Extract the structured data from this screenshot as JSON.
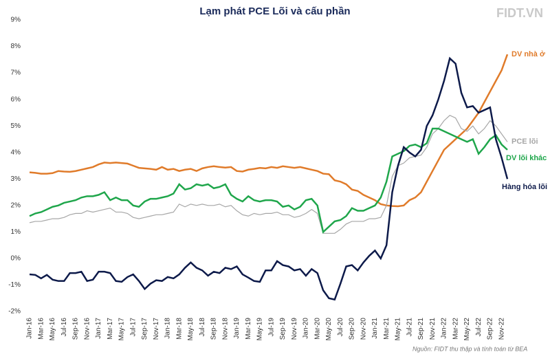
{
  "chart_data": {
    "type": "line",
    "title": "Lạm phát PCE Lõi và cấu phần",
    "logo": "FIDT.VN",
    "source": "Nguồn: FIDT thu thập và tính toán từ BEA",
    "categories": [
      "Jan-16",
      null,
      "Mar-16",
      null,
      "May-16",
      null,
      "Jul-16",
      null,
      "Sep-16",
      null,
      "Nov-16",
      null,
      "Jan-17",
      null,
      "Mar-17",
      null,
      "May-17",
      null,
      "Jul-17",
      null,
      "Sep-17",
      null,
      "Nov-17",
      null,
      "Jan-18",
      null,
      "Mar-18",
      null,
      "May-18",
      null,
      "Jul-18",
      null,
      "Sep-18",
      null,
      "Nov-18",
      null,
      "Jan-19",
      null,
      "Mar-19",
      null,
      "May-19",
      null,
      "Jul-19",
      null,
      "Sep-19",
      null,
      "Nov-19",
      null,
      "Jan-20",
      null,
      "Mar-20",
      null,
      "May-20",
      null,
      "Jul-20",
      null,
      "Sep-20",
      null,
      "Nov-20",
      null,
      "Jan-21",
      null,
      "Mar-21",
      null,
      "May-21",
      null,
      "Jul-21",
      null,
      "Sep-21",
      null,
      "Nov-21",
      null,
      "Jan-22",
      null,
      "Mar-22",
      null,
      "May-22",
      null,
      "Jul-22",
      null,
      "Sep-22",
      null,
      "Nov-22",
      null
    ],
    "ylim": [
      -2,
      9
    ],
    "yticks": [
      {
        "value": -2,
        "label": "-2%"
      },
      {
        "value": -1,
        "label": "-1%"
      },
      {
        "value": 0,
        "label": "0%"
      },
      {
        "value": 1,
        "label": "1%"
      },
      {
        "value": 2,
        "label": "2%"
      },
      {
        "value": 3,
        "label": "3%"
      },
      {
        "value": 4,
        "label": "4%"
      },
      {
        "value": 5,
        "label": "5%"
      },
      {
        "value": 6,
        "label": "6%"
      },
      {
        "value": 7,
        "label": "7%"
      },
      {
        "value": 8,
        "label": "8%"
      },
      {
        "value": 9,
        "label": "9%"
      }
    ],
    "grid": false,
    "series": [
      {
        "name": "DV nhà ở",
        "color": "#e07b2a",
        "values": [
          3.25,
          3.23,
          3.2,
          3.2,
          3.22,
          3.3,
          3.28,
          3.27,
          3.3,
          3.35,
          3.4,
          3.45,
          3.55,
          3.62,
          3.6,
          3.62,
          3.6,
          3.58,
          3.5,
          3.42,
          3.4,
          3.38,
          3.35,
          3.45,
          3.35,
          3.38,
          3.3,
          3.35,
          3.38,
          3.3,
          3.4,
          3.45,
          3.48,
          3.45,
          3.43,
          3.45,
          3.3,
          3.28,
          3.35,
          3.38,
          3.42,
          3.4,
          3.45,
          3.42,
          3.48,
          3.45,
          3.42,
          3.45,
          3.4,
          3.35,
          3.3,
          3.2,
          3.18,
          2.95,
          2.9,
          2.8,
          2.6,
          2.55,
          2.4,
          2.3,
          2.2,
          2.05,
          2.0,
          1.98,
          1.97,
          2.0,
          2.2,
          2.3,
          2.5,
          2.9,
          3.3,
          3.7,
          4.1,
          4.3,
          4.5,
          4.7,
          4.9,
          5.2,
          5.5,
          5.9,
          6.3,
          6.7,
          7.1,
          7.7
        ]
      },
      {
        "name": "PCE lõi",
        "color": "#a6a6a6",
        "values": [
          1.35,
          1.4,
          1.4,
          1.45,
          1.5,
          1.5,
          1.55,
          1.65,
          1.7,
          1.7,
          1.8,
          1.75,
          1.8,
          1.85,
          1.9,
          1.75,
          1.75,
          1.7,
          1.55,
          1.5,
          1.55,
          1.6,
          1.65,
          1.65,
          1.7,
          1.75,
          2.05,
          1.95,
          2.05,
          2.0,
          2.05,
          2.0,
          2.0,
          2.05,
          1.95,
          2.0,
          1.8,
          1.65,
          1.6,
          1.7,
          1.65,
          1.7,
          1.7,
          1.75,
          1.65,
          1.65,
          1.55,
          1.6,
          1.7,
          1.85,
          1.7,
          0.95,
          0.95,
          0.95,
          1.1,
          1.3,
          1.4,
          1.4,
          1.4,
          1.5,
          1.5,
          1.55,
          2.0,
          3.1,
          3.5,
          3.6,
          3.8,
          3.85,
          3.9,
          4.2,
          4.7,
          4.9,
          5.2,
          5.4,
          5.3,
          4.9,
          4.8,
          5.0,
          4.7,
          4.9,
          5.2,
          5.0,
          4.7,
          4.4
        ]
      },
      {
        "name": "DV lõi khác",
        "color": "#1fa64b",
        "values": [
          1.6,
          1.7,
          1.75,
          1.85,
          1.95,
          2.0,
          2.1,
          2.15,
          2.2,
          2.3,
          2.35,
          2.35,
          2.4,
          2.5,
          2.2,
          2.3,
          2.2,
          2.2,
          2.0,
          1.95,
          2.15,
          2.25,
          2.25,
          2.3,
          2.35,
          2.45,
          2.8,
          2.6,
          2.65,
          2.8,
          2.75,
          2.8,
          2.65,
          2.7,
          2.8,
          2.4,
          2.25,
          2.15,
          2.35,
          2.2,
          2.15,
          2.2,
          2.2,
          2.15,
          1.95,
          2.0,
          1.85,
          1.95,
          2.2,
          2.25,
          2.0,
          1.0,
          1.2,
          1.4,
          1.45,
          1.6,
          1.9,
          1.8,
          1.8,
          1.9,
          2.0,
          2.3,
          2.9,
          3.85,
          3.95,
          4.05,
          4.25,
          4.3,
          4.2,
          4.35,
          4.9,
          4.9,
          4.8,
          4.7,
          4.6,
          4.5,
          4.4,
          4.5,
          3.95,
          4.2,
          4.5,
          4.65,
          4.3,
          4.1
        ]
      },
      {
        "name": "Hàng hóa lõi",
        "color": "#0d1a4a",
        "values": [
          -0.6,
          -0.62,
          -0.75,
          -0.62,
          -0.8,
          -0.85,
          -0.85,
          -0.55,
          -0.55,
          -0.5,
          -0.85,
          -0.8,
          -0.5,
          -0.5,
          -0.55,
          -0.85,
          -0.88,
          -0.7,
          -0.6,
          -0.85,
          -1.15,
          -0.95,
          -0.82,
          -0.85,
          -0.7,
          -0.75,
          -0.6,
          -0.35,
          -0.15,
          -0.35,
          -0.45,
          -0.65,
          -0.5,
          -0.55,
          -0.35,
          -0.4,
          -0.3,
          -0.6,
          -0.72,
          -0.85,
          -0.88,
          -0.45,
          -0.45,
          -0.1,
          -0.25,
          -0.3,
          -0.45,
          -0.4,
          -0.65,
          -0.4,
          -0.55,
          -1.2,
          -1.5,
          -1.55,
          -0.95,
          -0.3,
          -0.25,
          -0.45,
          -0.15,
          0.1,
          0.3,
          0.0,
          0.5,
          2.5,
          3.5,
          4.2,
          4.0,
          3.85,
          4.1,
          5.0,
          5.4,
          6.0,
          6.7,
          7.55,
          7.35,
          6.25,
          5.7,
          5.75,
          5.5,
          5.6,
          5.7,
          4.5,
          3.8,
          3.0
        ]
      }
    ]
  }
}
